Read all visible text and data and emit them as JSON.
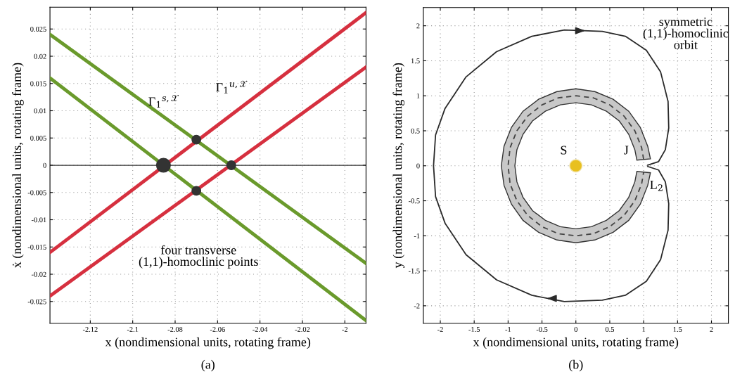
{
  "chart_data": [
    {
      "type": "line",
      "xlabel": "x (nondimensional units, rotating frame)",
      "ylabel": "ẋ (nondimensional units, rotating frame)",
      "xlim": [
        -2.139,
        -1.99
      ],
      "ylim": [
        -0.029,
        0.029
      ],
      "xticks": [
        -2.12,
        -2.1,
        -2.08,
        -2.06,
        -2.04,
        -2.02,
        -2
      ],
      "yticks": [
        -0.025,
        -0.02,
        -0.015,
        -0.01,
        -0.005,
        0,
        0.005,
        0.01,
        0.015,
        0.02,
        0.025
      ],
      "grid": true,
      "legend": false,
      "series": [
        {
          "color": "#6a9a2c",
          "x": [
            -2.139,
            -1.99
          ],
          "values": [
            0.024,
            -0.018
          ]
        },
        {
          "color": "#6a9a2c",
          "x": [
            -2.139,
            -1.99
          ],
          "values": [
            0.016,
            -0.0285
          ]
        },
        {
          "color": "#d6303f",
          "x": [
            -2.139,
            -1.99
          ],
          "values": [
            -0.016,
            0.028
          ]
        },
        {
          "color": "#d6303f",
          "x": [
            -2.139,
            -1.99
          ],
          "values": [
            -0.024,
            0.018
          ]
        },
        {
          "type": "bubble",
          "color": "#333333",
          "x": [
            -2.0855,
            -2.07,
            -2.07,
            -2.0535
          ],
          "values": [
            0,
            0.0047,
            -0.0047,
            0
          ],
          "sizes": [
            1,
            0.4,
            0.4,
            0.4
          ]
        }
      ],
      "ref_lines": [
        {
          "axis": "y",
          "value": 0,
          "color": "#333333"
        }
      ],
      "annotations": [
        "Γ$_{1}$$^{s,𝒳}$",
        "Γ$_{1}$$^{u,𝒳}$",
        "four transverse\n(1,1)-homoclinic points",
        "(a)"
      ]
    },
    {
      "type": "line",
      "xlabel": "x (nondimensional units, rotating frame)",
      "ylabel": "y (nondimensional units, rotating frame)",
      "xlim": [
        -2.25,
        2.25
      ],
      "ylim": [
        -2.25,
        2.26
      ],
      "xticks": [
        -2,
        -1.5,
        -1,
        -0.5,
        0,
        0.5,
        1,
        1.5,
        2
      ],
      "yticks": [
        -2,
        -1.5,
        -1,
        -0.5,
        0,
        0.5,
        1,
        1.5,
        2
      ],
      "grid": true,
      "legend": false,
      "series": [
        {
          "type": "area",
          "color": "#c8c8c8",
          "x": [
            1.1,
            1.06,
            0.95,
            0.78,
            0.55,
            0.28,
            0,
            -0.28,
            -0.55,
            -0.78,
            -0.95,
            -1.06,
            -1.1,
            -1.06,
            -0.95,
            -0.78,
            -0.55,
            -0.28,
            0,
            0.28,
            0.55,
            0.78,
            0.95,
            1.06,
            1.1,
            0.9,
            0.87,
            0.78,
            0.64,
            0.45,
            0.23,
            0,
            -0.23,
            -0.45,
            -0.64,
            -0.78,
            -0.87,
            -0.9,
            -0.87,
            -0.78,
            -0.64,
            -0.45,
            -0.23,
            0,
            0.23,
            0.45,
            0.64,
            0.78,
            0.87,
            0.9
          ],
          "values": [
            0.1,
            0.28,
            0.55,
            0.78,
            0.95,
            1.06,
            1.1,
            1.06,
            0.95,
            0.78,
            0.55,
            0.28,
            0,
            -0.28,
            -0.55,
            -0.78,
            -0.95,
            -1.06,
            -1.1,
            -1.06,
            -0.95,
            -0.78,
            -0.55,
            -0.28,
            -0.1,
            -0.08,
            -0.23,
            -0.45,
            -0.64,
            -0.78,
            -0.87,
            -0.9,
            -0.87,
            -0.78,
            -0.64,
            -0.45,
            -0.23,
            0,
            0.23,
            0.45,
            0.64,
            0.78,
            0.87,
            0.9,
            0.87,
            0.78,
            0.64,
            0.45,
            0.23,
            0.08
          ]
        },
        {
          "color": "#444444",
          "line_style": "dashed",
          "x": [
            1.0,
            0.97,
            0.87,
            0.71,
            0.5,
            0.26,
            0,
            -0.26,
            -0.5,
            -0.71,
            -0.87,
            -0.97,
            -1.0,
            -0.97,
            -0.87,
            -0.71,
            -0.5,
            -0.26,
            0,
            0.26,
            0.5,
            0.71,
            0.87,
            0.97,
            1.0
          ],
          "values": [
            0.09,
            0.26,
            0.5,
            0.71,
            0.87,
            0.97,
            1.0,
            0.97,
            0.87,
            0.71,
            0.5,
            0.26,
            0,
            -0.26,
            -0.5,
            -0.71,
            -0.87,
            -0.97,
            -1.0,
            -0.97,
            -0.87,
            -0.71,
            -0.5,
            -0.26,
            -0.09
          ]
        },
        {
          "color": "#2a2a2a",
          "x": [
            1.06,
            1.22,
            1.32,
            1.37,
            1.36,
            1.25,
            1.04,
            0.73,
            0.39,
            -0.17,
            -0.65,
            -1.17,
            -1.62,
            -1.93,
            -2.07,
            -2.1,
            -2.07,
            -1.93,
            -1.62,
            -1.17,
            -0.65,
            -0.17,
            0.39,
            0.73,
            1.04,
            1.25,
            1.36,
            1.37,
            1.32,
            1.22,
            1.06
          ],
          "values": [
            -0.01,
            -0.06,
            -0.23,
            -0.54,
            -0.92,
            -1.34,
            -1.65,
            -1.85,
            -1.92,
            -1.94,
            -1.85,
            -1.63,
            -1.27,
            -0.82,
            -0.44,
            0,
            0.44,
            0.82,
            1.27,
            1.63,
            1.85,
            1.94,
            1.92,
            1.85,
            1.65,
            1.34,
            0.92,
            0.54,
            0.23,
            0.06,
            0.01
          ]
        },
        {
          "type": "scatter",
          "color": "#e8c020",
          "x": [
            0
          ],
          "values": [
            0
          ]
        }
      ],
      "annotations": [
        "S",
        "J",
        "L$_{2}$",
        "symmetric\n(1,1)-homoclinic\norbit",
        "(b)"
      ]
    }
  ]
}
